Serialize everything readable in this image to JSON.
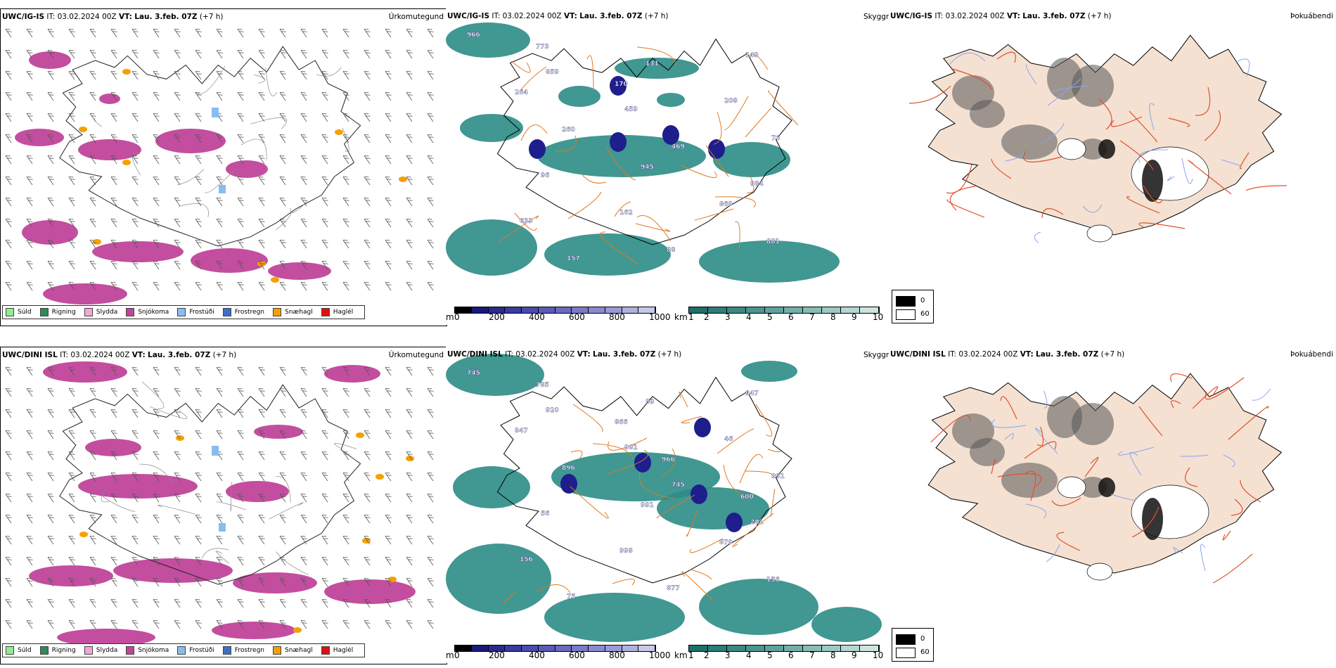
{
  "rows": [
    {
      "model": "UWC/IG-IS",
      "it_label": "IT:",
      "it_value": "03.02.2024 00Z",
      "vt_label": "VT:",
      "vt_value": "Lau. 3.feb. 07Z",
      "lead": "(+7 h)",
      "precip_title": "Úrkomutegund",
      "vis_title": "Skyggni",
      "cloud_title": "Þokuábendi",
      "vis_labels": [
        "966",
        "859",
        "459",
        "469",
        "984",
        "633",
        "157",
        "131",
        "208",
        "76",
        "96",
        "162",
        "88",
        "149",
        "264",
        "260",
        "945",
        "869",
        "881",
        "773",
        "170"
      ]
    },
    {
      "model": "UWC/DINI ISL",
      "it_label": "IT:",
      "it_value": "03.02.2024 00Z",
      "vt_label": "VT:",
      "vt_value": "Lau. 3.feb. 07Z",
      "lead": "(+7 h)",
      "precip_title": "Úrkomutegund",
      "vis_title": "Skyggni",
      "cloud_title": "Þokuábendi",
      "vis_labels": [
        "745",
        "920",
        "981",
        "745",
        "281",
        "156",
        "75",
        "89",
        "46",
        "891",
        "56",
        "998",
        "877",
        "947",
        "947",
        "896",
        "991",
        "879",
        "156",
        "785",
        "866",
        "966",
        "600"
      ]
    }
  ],
  "precip_legend": [
    {
      "label": "Súld",
      "color": "#90ee90"
    },
    {
      "label": "Rigning",
      "color": "#2e8b57"
    },
    {
      "label": "Slydda",
      "color": "#f4a6d7"
    },
    {
      "label": "Snjókoma",
      "color": "#c0449a"
    },
    {
      "label": "Frostúði",
      "color": "#87bdf0"
    },
    {
      "label": "Frostregn",
      "color": "#3c6fc7"
    },
    {
      "label": "Snæhagl",
      "color": "#f5a000"
    },
    {
      "label": "Haglél",
      "color": "#e01010"
    }
  ],
  "altitude_scale": {
    "unit": "m",
    "ticks": [
      "0",
      "200",
      "400",
      "600",
      "800",
      "1000"
    ],
    "colors": [
      "#000000",
      "#1a1a7a",
      "#2a2a90",
      "#3a3aa0",
      "#4a4ab0",
      "#5a5ab8",
      "#6a6ac0",
      "#7a7ac8",
      "#8a8ad0",
      "#9a9ad8",
      "#b0b0e0",
      "#c8c8ec"
    ]
  },
  "visibility_scale": {
    "unit": "km",
    "ticks": [
      "1",
      "2",
      "3",
      "4",
      "5",
      "6",
      "7",
      "8",
      "9",
      "10"
    ],
    "colors": [
      "#1f6f6a",
      "#2d7c77",
      "#3c8883",
      "#4c958f",
      "#5fa29c",
      "#73afa9",
      "#88bcb6",
      "#9ec9c3",
      "#b5d6d1",
      "#cde4df"
    ]
  },
  "sunshine_legend": {
    "top": "0",
    "bottom": "60"
  },
  "colors": {
    "snow": "#c0449a",
    "freezing_drizzle": "#87bdf0",
    "sleet_ice": "#f5a000",
    "fog_teal": "#2c8c86",
    "fog_dark": "#1e1e8c",
    "roads": "#e07a20",
    "land": "#f5e1d2",
    "rivers": "#8aa5f0",
    "coast": "#000000",
    "grey_shade": "#555555"
  }
}
